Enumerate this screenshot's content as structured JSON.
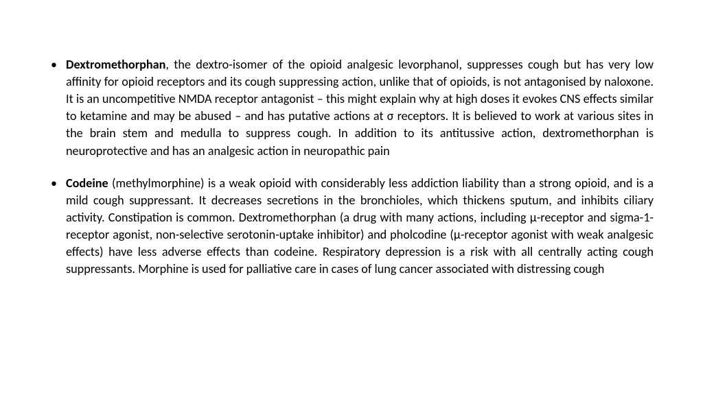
{
  "slide": {
    "background_color": "#ffffff",
    "text_color": "#000000",
    "font_family": "Calibri, Arial, sans-serif",
    "font_size_pt": 14,
    "line_height": 1.38,
    "text_align": "justify",
    "bullets": [
      {
        "bold_lead": "Dextromethorphan",
        "rest": ", the dextro-isomer of the opioid analgesic levorphanol, suppresses cough but has very low affinity for opioid receptors and its cough suppressing action, unlike that of opioids, is not antagonised by naloxone. It is an uncompetitive NMDA receptor antagonist – this might explain why at high doses it evokes CNS effects similar to ketamine and may be abused – and has putative actions at σ receptors. It is believed to work at various sites in the brain stem and medulla to suppress cough. In addition to its antitussive action, dextromethorphan is neuroprotective and has an analgesic action in neuropathic pain"
      },
      {
        "bold_lead": "Codeine",
        "rest": " (methylmorphine) is a weak opioid with considerably less addiction liability than a strong opioid, and is a mild cough suppressant. It decreases secretions in the bronchioles, which thickens sputum, and inhibits ciliary activity. Constipation is common. Dextromethorphan (a drug with many actions, including μ-receptor and sigma-1-receptor agonist, non-selective serotonin-uptake inhibitor) and pholcodine (μ-receptor agonist with weak analgesic effects) have less adverse effects than codeine. Respiratory depression is a risk with all centrally acting cough suppressants. Morphine is used for palliative care in cases of lung cancer associated with distressing cough"
      }
    ]
  }
}
